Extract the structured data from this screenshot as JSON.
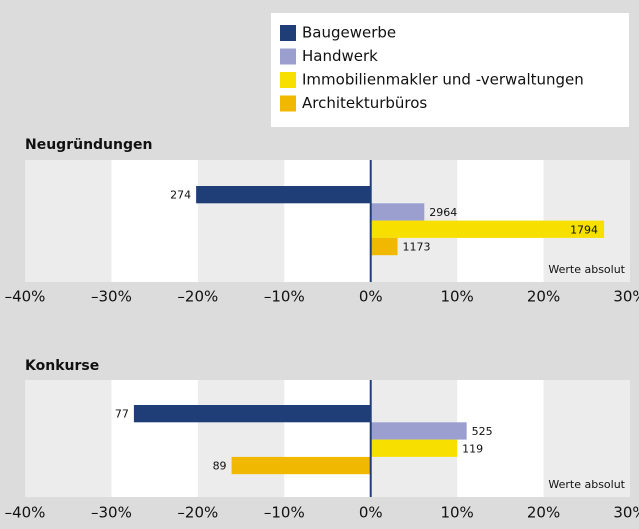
{
  "chart_data": [
    {
      "type": "bar",
      "orientation": "horizontal",
      "title": "Neugründungen",
      "note": "Werte absolut",
      "series": [
        {
          "name": "Baugewerbe",
          "color": "#1f3e78",
          "values": [
            -20.2
          ],
          "absolute_values": [
            274
          ]
        },
        {
          "name": "Handwerk",
          "color": "#9b9fd0",
          "values": [
            6.2
          ],
          "absolute_values": [
            2964
          ]
        },
        {
          "name": "Immobilienmakler und -verwaltungen",
          "color": "#f7e000",
          "values": [
            27
          ],
          "absolute_values": [
            1794
          ]
        },
        {
          "name": "Architekturbüros",
          "color": "#f0b800",
          "values": [
            3.1
          ],
          "absolute_values": [
            1173
          ]
        }
      ],
      "xlim": [
        -40,
        30
      ],
      "xticks": [
        {
          "value": -40,
          "label": "–40%"
        },
        {
          "value": -30,
          "label": "–30%"
        },
        {
          "value": -20,
          "label": "–20%"
        },
        {
          "value": -10,
          "label": "–10%"
        },
        {
          "value": 0,
          "label": "0%"
        },
        {
          "value": 10,
          "label": "10%"
        },
        {
          "value": 20,
          "label": "20%"
        },
        {
          "value": 30,
          "label": "30%"
        }
      ]
    },
    {
      "type": "bar",
      "orientation": "horizontal",
      "title": "Konkurse",
      "note": "Werte absolut",
      "series": [
        {
          "color": "#1f3e78",
          "values": [
            -27.4
          ],
          "absolute_values": [
            77
          ]
        },
        {
          "color": "#9b9fd0",
          "values": [
            11.1
          ],
          "absolute_values": [
            525
          ]
        },
        {
          "color": "#f7e000",
          "values": [
            10.0
          ],
          "absolute_values": [
            119
          ]
        },
        {
          "color": "#f0b800",
          "values": [
            -16.1
          ],
          "absolute_values": [
            89
          ]
        }
      ],
      "xlim": [
        -40,
        30
      ],
      "xticks": [
        {
          "value": -40,
          "label": "–40%"
        },
        {
          "value": -30,
          "label": "–30%"
        },
        {
          "value": -20,
          "label": "–20%"
        },
        {
          "value": -10,
          "label": "–10%"
        },
        {
          "value": 0,
          "label": "0%"
        },
        {
          "value": 10,
          "label": "10%"
        },
        {
          "value": 20,
          "label": "20%"
        },
        {
          "value": 30,
          "label": "30%"
        }
      ]
    }
  ]
}
